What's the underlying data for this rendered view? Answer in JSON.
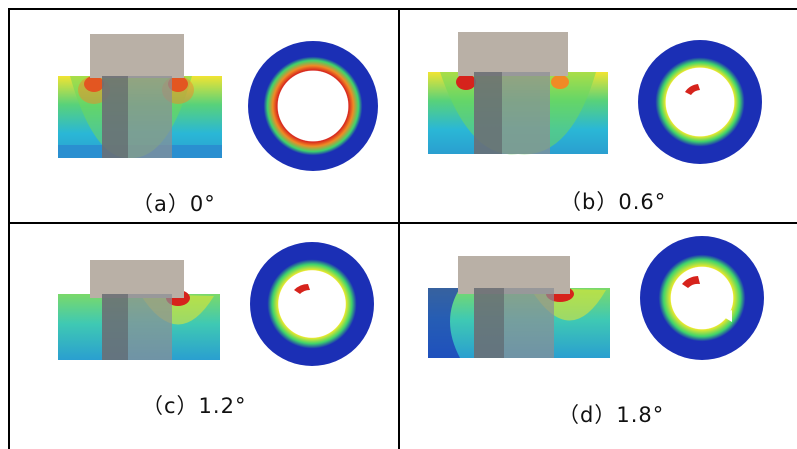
{
  "panels": [
    {
      "id": "a",
      "caption": "（a）0°"
    },
    {
      "id": "b",
      "caption": "（b）0.6°"
    },
    {
      "id": "c",
      "caption": "（c）1.2°"
    },
    {
      "id": "d",
      "caption": "（d）1.8°"
    }
  ],
  "colors": {
    "frame": "#000000",
    "background": "#ffffff",
    "blue": "#1b2fb5",
    "cyan": "#2ab7d6",
    "green": "#3fd46b",
    "yellow": "#e9e82c",
    "orange": "#f08a25",
    "red": "#d6231c",
    "shaft_gray": "#8a8f96",
    "block_gray": "#b9b0a6"
  }
}
